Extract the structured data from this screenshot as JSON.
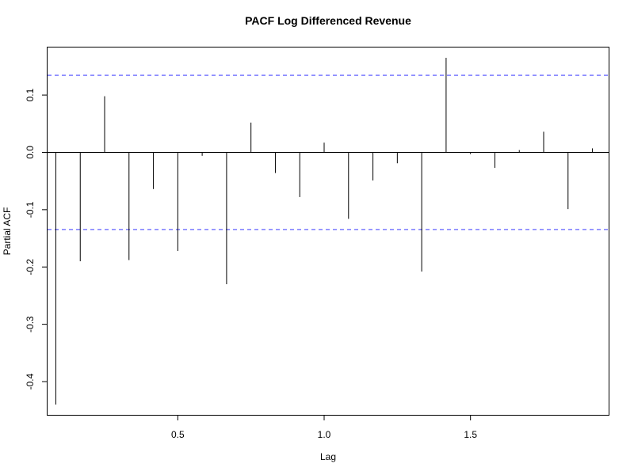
{
  "chart_data": {
    "type": "bar",
    "subtype": "pacf-spike",
    "title": "PACF Log Differenced Revenue",
    "xlabel": "Lag",
    "ylabel": "Partial ACF",
    "xlim": [
      0.055,
      1.972
    ],
    "ylim": [
      -0.458,
      0.183
    ],
    "x_ticks": [
      0.5,
      1.0,
      1.5
    ],
    "x_tick_labels": [
      "0.5",
      "1.0",
      "1.5"
    ],
    "y_ticks": [
      -0.4,
      -0.3,
      -0.2,
      -0.1,
      0.0,
      0.1
    ],
    "y_tick_labels": [
      "-0.4",
      "-0.3",
      "-0.2",
      "-0.1",
      "0.0",
      "0.1"
    ],
    "confidence_bound": 0.1345,
    "confidence_color": "#7b7bff",
    "spike_color": "#000000",
    "zero_line": true,
    "grid": false,
    "legend": "none",
    "lags": [
      0.0833,
      0.1667,
      0.25,
      0.3333,
      0.4167,
      0.5,
      0.5833,
      0.6667,
      0.75,
      0.8333,
      0.9167,
      1.0,
      1.0833,
      1.1667,
      1.25,
      1.3333,
      1.4167,
      1.5,
      1.5833,
      1.6667,
      1.75,
      1.8333,
      1.9167
    ],
    "values": [
      -0.44,
      -0.19,
      0.098,
      -0.188,
      -0.064,
      -0.172,
      -0.006,
      -0.23,
      0.052,
      -0.036,
      -0.078,
      0.017,
      -0.116,
      -0.049,
      -0.019,
      -0.208,
      0.165,
      -0.003,
      -0.027,
      0.004,
      0.036,
      -0.099,
      0.007
    ]
  }
}
